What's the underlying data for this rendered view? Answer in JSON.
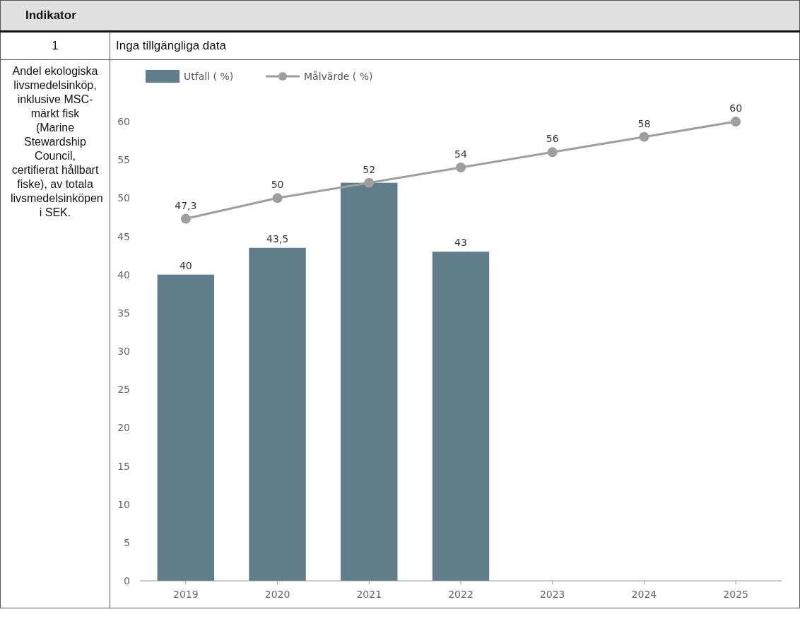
{
  "chart_data": {
    "type": "bar",
    "title": "Indikator",
    "annotations": [
      "1",
      "Inga tillgängliga data",
      "Andel ekologiska livsmedelsinköp, inklusive MSC-märkt fisk (Marine Stewardship Council, certifierat hållbart fiske), av totala livsmedelsinköpen i SEK."
    ],
    "categories": [
      "2019",
      "2020",
      "2021",
      "2022",
      "2023",
      "2024",
      "2025"
    ],
    "series": [
      {
        "name": "Utfall ( %)",
        "color": "#607d8b",
        "values": [
          40,
          43.5,
          52,
          43,
          null,
          null,
          null
        ],
        "value_labels": [
          "40",
          "43,5",
          null,
          "43",
          null,
          null,
          null
        ]
      },
      {
        "name": "Målvärde ( %)",
        "type": "line",
        "color": "#9e9e9e",
        "marker": "circle",
        "values": [
          47.3,
          50,
          52,
          54,
          56,
          58,
          60
        ],
        "value_labels": [
          "47,3",
          "50",
          "52",
          "54",
          "56",
          "58",
          "60"
        ]
      }
    ],
    "ylim": [
      0,
      60
    ],
    "yticks": [
      0,
      5,
      10,
      15,
      20,
      25,
      30,
      35,
      40,
      45,
      50,
      55,
      60
    ],
    "grid": false,
    "legend": "top left"
  }
}
